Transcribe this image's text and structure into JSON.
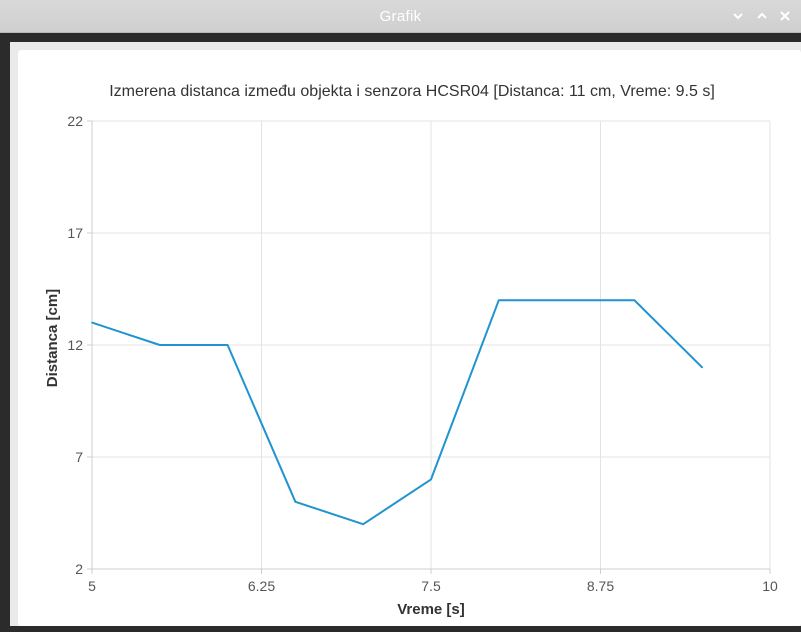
{
  "window": {
    "title": "Grafik",
    "controls": [
      "minimize",
      "maximize",
      "close"
    ]
  },
  "chart_data": {
    "type": "line",
    "title": "Izmerena distanca između objekta i senzora HCSR04 [Distanca: 11 cm, Vreme: 9.5 s]",
    "xlabel": "Vreme [s]",
    "ylabel": "Distanca [cm]",
    "xlim": [
      5,
      10
    ],
    "ylim": [
      2,
      22
    ],
    "xticks": [
      "5",
      "6.25",
      "7.5",
      "8.75",
      "10"
    ],
    "yticks": [
      "2",
      "7",
      "12",
      "17",
      "22"
    ],
    "grid": true,
    "series": [
      {
        "color": "#1f94cf",
        "x": [
          5.0,
          5.5,
          6.0,
          6.5,
          7.0,
          7.5,
          8.0,
          8.5,
          9.0,
          9.5
        ],
        "y": [
          13,
          12,
          12,
          5,
          4,
          6,
          14,
          14,
          14,
          11
        ]
      }
    ]
  }
}
